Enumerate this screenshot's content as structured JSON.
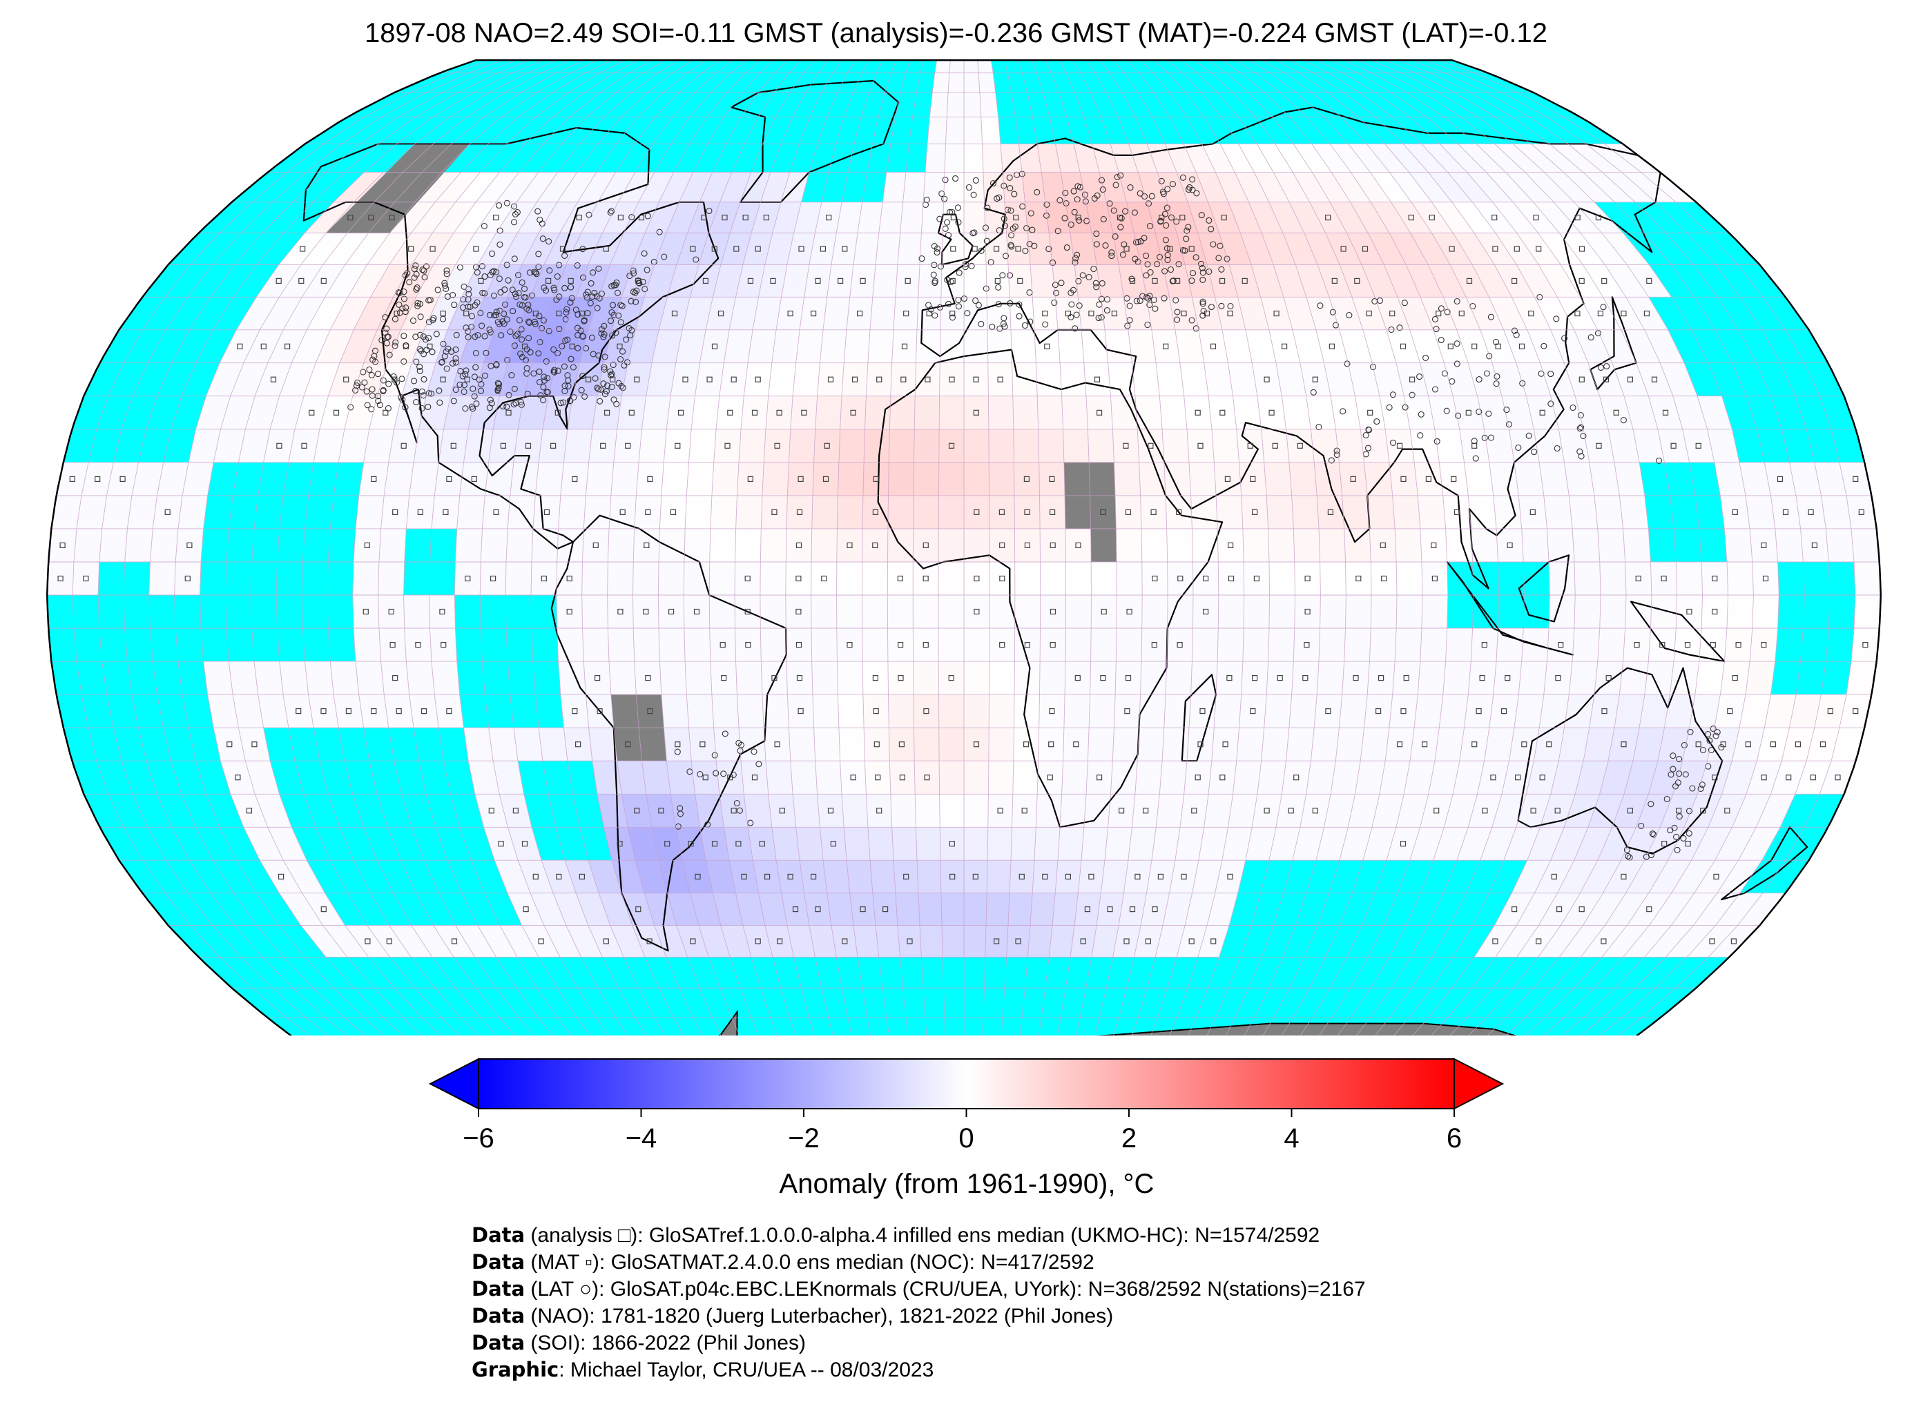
{
  "title": "1897-08 NAO=2.49 SOI=-0.11 GMST (analysis)=-0.236 GMST (MAT)=-0.224 GMST (LAT)=-0.12",
  "colors": {
    "no_data": "#00ffff",
    "land_mask": "#808080",
    "grid_lines": "#c8a0c8",
    "coastline": "#000000"
  },
  "colorbar": {
    "label": "Anomaly (from 1961-1990), °C",
    "min": -6,
    "max": 6,
    "ticks": [
      "−6",
      "−4",
      "−2",
      "0",
      "2",
      "4",
      "6"
    ],
    "tick_values": [
      -6,
      -4,
      -2,
      0,
      2,
      4,
      6
    ],
    "low_color": "#0000ff",
    "mid_color": "#ffffff",
    "high_color": "#ff0000"
  },
  "credits": [
    {
      "bold": "Data",
      "text": " (analysis □): GloSATref.1.0.0.0-alpha.4 infilled ens median (UKMO-HC): N=1574/2592"
    },
    {
      "bold": "Data",
      "text": " (MAT ▫): GloSATMAT.2.4.0.0 ens median (NOC): N=417/2592"
    },
    {
      "bold": "Data",
      "text": " (LAT ○): GloSAT.p04c.EBC.LEKnormals (CRU/UEA, UYork): N=368/2592 N(stations)=2167"
    },
    {
      "bold": "Data",
      "text": " (NAO): 1781-1820 (Juerg Luterbacher), 1821-2022 (Phil Jones)"
    },
    {
      "bold": "Data",
      "text": " (SOI): 1866-2022 (Phil Jones)"
    },
    {
      "bold": "Graphic",
      "text": ": Michael Taylor, CRU/UEA -- 08/03/2023"
    }
  ]
}
